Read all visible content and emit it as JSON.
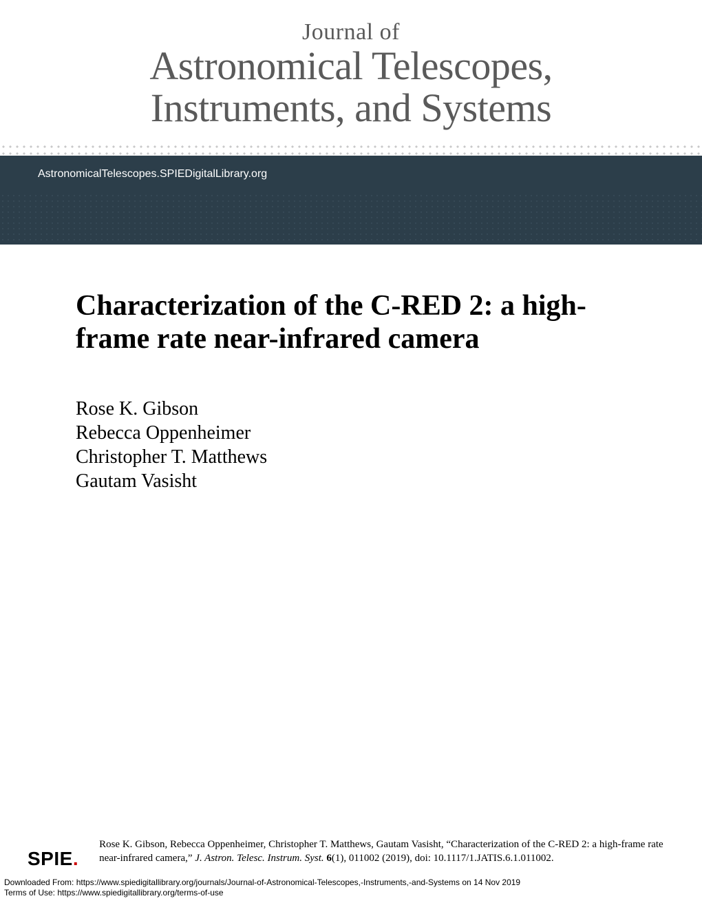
{
  "header": {
    "journal_of": "Journal of",
    "journal_line1": "Astronomical Telescopes,",
    "journal_line2": "Instruments, and Systems",
    "url": "AstronomicalTelescopes.SPIEDigitalLibrary.org"
  },
  "article": {
    "title": "Characterization of the C-RED 2: a high-frame rate near-infrared camera",
    "authors": [
      "Rose K. Gibson",
      "Rebecca Oppenheimer",
      "Christopher T. Matthews",
      "Gautam Vasisht"
    ]
  },
  "citation": {
    "logo_text": "SPIE",
    "logo_dot": ".",
    "authors_text": "Rose K. Gibson, Rebecca Oppenheimer, Christopher T. Matthews, Gautam Vasisht, “Characterization of the C-RED 2: a high-frame rate near-infrared camera,” ",
    "journal": "J. Astron. Telesc. Instrum. Syst.",
    "volume": "6",
    "issue_pages": "(1), 011002 (2019), doi: 10.1117/1.JATIS.6.1.011002."
  },
  "footer": {
    "downloaded": "Downloaded From: https://www.spiedigitallibrary.org/journals/Journal-of-Astronomical-Telescopes,-Instruments,-and-Systems on 14 Nov 2019",
    "terms": "Terms of Use: https://www.spiedigitallibrary.org/terms-of-use"
  },
  "colors": {
    "header_text": "#5a5a5a",
    "url_bar_bg": "#2c3e4a",
    "url_bar_text": "#ffffff",
    "dot_gray": "#c8c8ca",
    "dark_dot": "#3a4d5a",
    "spie_red": "#cc0000"
  }
}
